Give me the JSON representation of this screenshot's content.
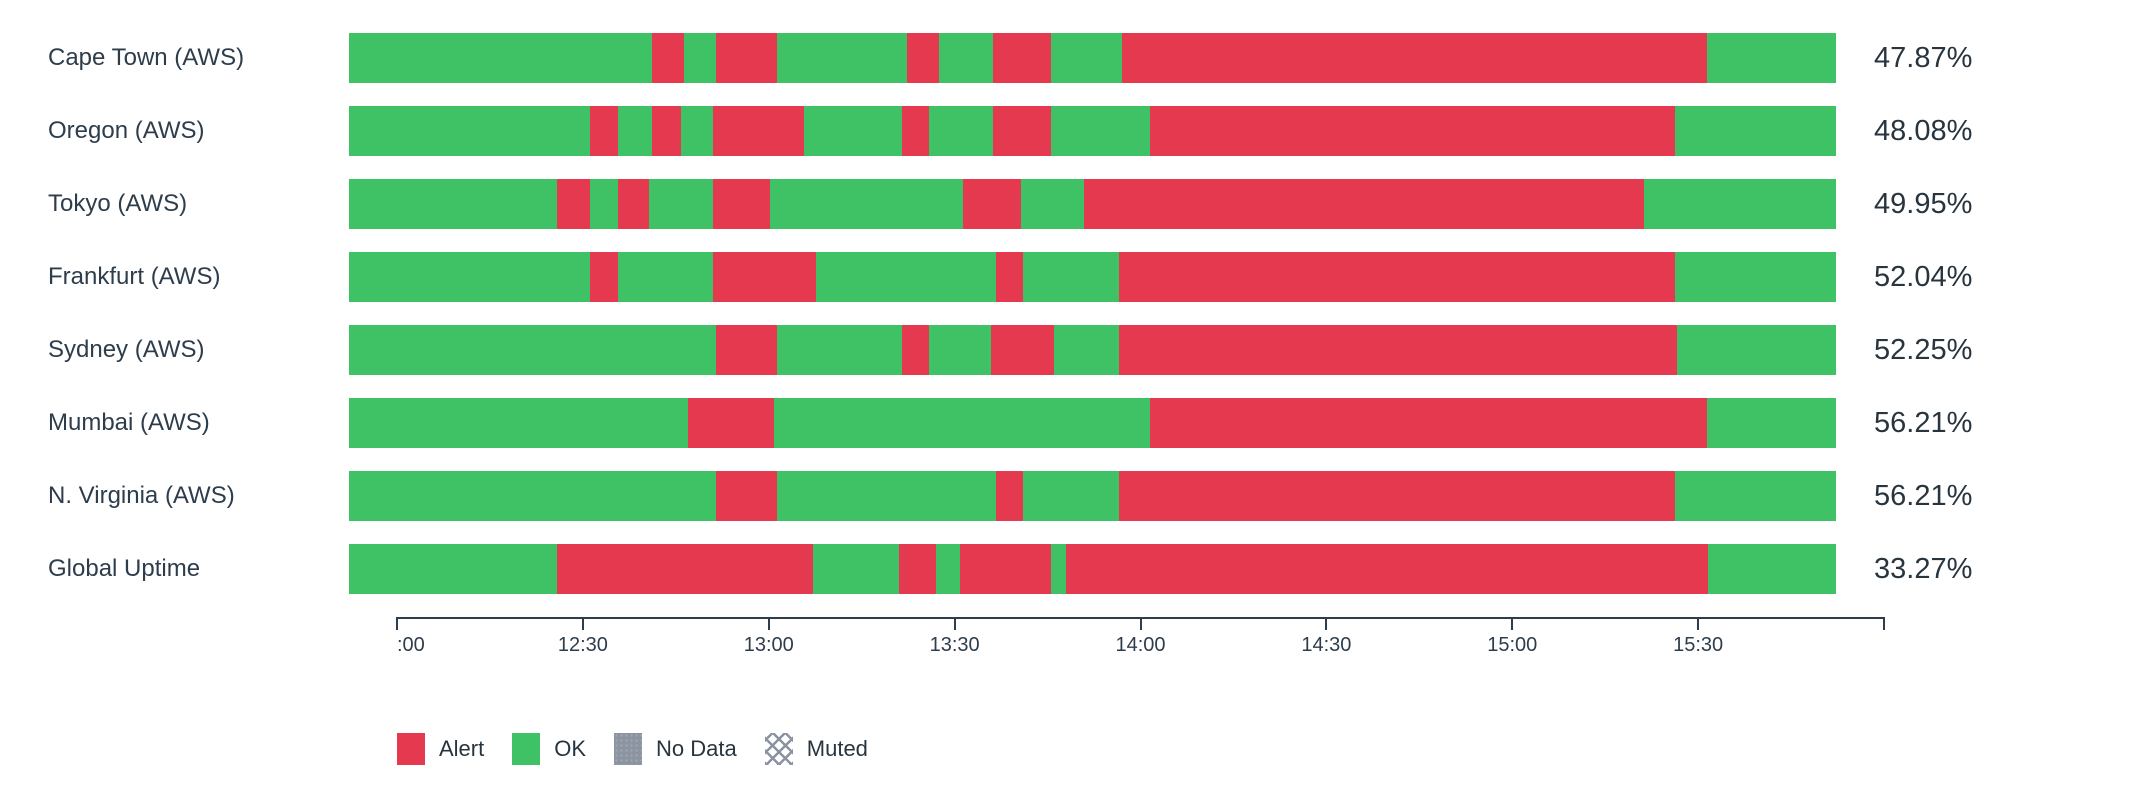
{
  "colors": {
    "alert": "#e5394f",
    "ok": "#3fc266",
    "no_data": "#8c94a1",
    "muted_pattern": "#8a93a2",
    "text": "#2e3d4c",
    "axis": "#2e3d4c",
    "background": "#ffffff"
  },
  "chart_data": {
    "type": "bar",
    "subtype": "horizontal-status-timeline (uptime/SLO widget)",
    "title": "",
    "xlabel": "",
    "ylabel": "",
    "x_axis": {
      "start": "12:00",
      "end": "16:00",
      "tick_interval_minutes": 30,
      "ticks": [
        {
          "pct": 0.0,
          "label": ":00"
        },
        {
          "pct": 12.5,
          "label": "12:30"
        },
        {
          "pct": 25.0,
          "label": "13:00"
        },
        {
          "pct": 37.5,
          "label": "13:30"
        },
        {
          "pct": 50.0,
          "label": "14:00"
        },
        {
          "pct": 62.5,
          "label": "14:30"
        },
        {
          "pct": 75.0,
          "label": "15:00"
        },
        {
          "pct": 87.5,
          "label": "15:30"
        },
        {
          "pct": 100.0,
          "label": ""
        }
      ]
    },
    "rows": [
      {
        "label": "Cape Town (AWS)",
        "uptime": "47.87%",
        "segments": [
          {
            "status": "ok",
            "start": "12:00",
            "end": "12:49",
            "start_pct": 0,
            "end_pct": 20.4
          },
          {
            "status": "alert",
            "start": "12:49",
            "end": "12:54",
            "start_pct": 20.4,
            "end_pct": 22.5
          },
          {
            "status": "ok",
            "start": "12:54",
            "end": "12:59",
            "start_pct": 22.5,
            "end_pct": 24.7
          },
          {
            "status": "alert",
            "start": "12:59",
            "end": "13:09",
            "start_pct": 24.7,
            "end_pct": 28.8
          },
          {
            "status": "ok",
            "start": "13:09",
            "end": "13:30",
            "start_pct": 28.8,
            "end_pct": 37.5
          },
          {
            "status": "alert",
            "start": "13:30",
            "end": "13:35",
            "start_pct": 37.5,
            "end_pct": 39.7
          },
          {
            "status": "ok",
            "start": "13:35",
            "end": "13:44",
            "start_pct": 39.7,
            "end_pct": 43.3
          },
          {
            "status": "alert",
            "start": "13:44",
            "end": "13:53",
            "start_pct": 43.3,
            "end_pct": 47.2
          },
          {
            "status": "ok",
            "start": "13:53",
            "end": "14:05",
            "start_pct": 47.2,
            "end_pct": 52.0
          },
          {
            "status": "alert",
            "start": "14:05",
            "end": "15:39",
            "start_pct": 52.0,
            "end_pct": 91.3
          },
          {
            "status": "ok",
            "start": "15:39",
            "end": "16:00",
            "start_pct": 91.3,
            "end_pct": 100
          }
        ]
      },
      {
        "label": "Oregon (AWS)",
        "uptime": "48.08%",
        "segments": [
          {
            "status": "ok",
            "start": "12:00",
            "end": "12:39",
            "start_pct": 0,
            "end_pct": 16.2
          },
          {
            "status": "alert",
            "start": "12:39",
            "end": "12:43",
            "start_pct": 16.2,
            "end_pct": 18.1
          },
          {
            "status": "ok",
            "start": "12:43",
            "end": "12:49",
            "start_pct": 18.1,
            "end_pct": 20.4
          },
          {
            "status": "alert",
            "start": "12:49",
            "end": "12:54",
            "start_pct": 20.4,
            "end_pct": 22.3
          },
          {
            "status": "ok",
            "start": "12:54",
            "end": "12:59",
            "start_pct": 22.3,
            "end_pct": 24.5
          },
          {
            "status": "alert",
            "start": "12:59",
            "end": "13:13",
            "start_pct": 24.5,
            "end_pct": 30.6
          },
          {
            "status": "ok",
            "start": "13:13",
            "end": "13:29",
            "start_pct": 30.6,
            "end_pct": 37.2
          },
          {
            "status": "alert",
            "start": "13:29",
            "end": "13:34",
            "start_pct": 37.2,
            "end_pct": 39.0
          },
          {
            "status": "ok",
            "start": "13:34",
            "end": "13:44",
            "start_pct": 39.0,
            "end_pct": 43.3
          },
          {
            "status": "alert",
            "start": "13:44",
            "end": "13:53",
            "start_pct": 43.3,
            "end_pct": 47.2
          },
          {
            "status": "ok",
            "start": "13:53",
            "end": "14:09",
            "start_pct": 47.2,
            "end_pct": 53.9
          },
          {
            "status": "alert",
            "start": "14:09",
            "end": "15:34",
            "start_pct": 53.9,
            "end_pct": 89.2
          },
          {
            "status": "ok",
            "start": "15:34",
            "end": "16:00",
            "start_pct": 89.2,
            "end_pct": 100
          }
        ]
      },
      {
        "label": "Tokyo (AWS)",
        "uptime": "49.95%",
        "segments": [
          {
            "status": "ok",
            "start": "12:00",
            "end": "12:34",
            "start_pct": 0,
            "end_pct": 14.0
          },
          {
            "status": "alert",
            "start": "12:34",
            "end": "12:39",
            "start_pct": 14.0,
            "end_pct": 16.2
          },
          {
            "status": "ok",
            "start": "12:39",
            "end": "12:43",
            "start_pct": 16.2,
            "end_pct": 18.1
          },
          {
            "status": "alert",
            "start": "12:43",
            "end": "12:48",
            "start_pct": 18.1,
            "end_pct": 20.2
          },
          {
            "status": "ok",
            "start": "12:48",
            "end": "12:59",
            "start_pct": 20.2,
            "end_pct": 24.5
          },
          {
            "status": "alert",
            "start": "12:59",
            "end": "13:08",
            "start_pct": 24.5,
            "end_pct": 28.3
          },
          {
            "status": "ok",
            "start": "13:08",
            "end": "13:39",
            "start_pct": 28.3,
            "end_pct": 41.3
          },
          {
            "status": "alert",
            "start": "13:39",
            "end": "13:48",
            "start_pct": 41.3,
            "end_pct": 45.2
          },
          {
            "status": "ok",
            "start": "13:48",
            "end": "13:59",
            "start_pct": 45.2,
            "end_pct": 49.4
          },
          {
            "status": "alert",
            "start": "13:59",
            "end": "15:29",
            "start_pct": 49.4,
            "end_pct": 87.1
          },
          {
            "status": "ok",
            "start": "15:29",
            "end": "16:00",
            "start_pct": 87.1,
            "end_pct": 100
          }
        ]
      },
      {
        "label": "Frankfurt (AWS)",
        "uptime": "52.04%",
        "segments": [
          {
            "status": "ok",
            "start": "12:00",
            "end": "12:39",
            "start_pct": 0,
            "end_pct": 16.2
          },
          {
            "status": "alert",
            "start": "12:39",
            "end": "12:43",
            "start_pct": 16.2,
            "end_pct": 18.1
          },
          {
            "status": "ok",
            "start": "12:43",
            "end": "12:59",
            "start_pct": 18.1,
            "end_pct": 24.5
          },
          {
            "status": "alert",
            "start": "12:59",
            "end": "13:15",
            "start_pct": 24.5,
            "end_pct": 31.4
          },
          {
            "status": "ok",
            "start": "13:15",
            "end": "13:44",
            "start_pct": 31.4,
            "end_pct": 43.5
          },
          {
            "status": "alert",
            "start": "13:44",
            "end": "13:49",
            "start_pct": 43.5,
            "end_pct": 45.3
          },
          {
            "status": "ok",
            "start": "13:49",
            "end": "14:04",
            "start_pct": 45.3,
            "end_pct": 51.8
          },
          {
            "status": "alert",
            "start": "14:04",
            "end": "15:34",
            "start_pct": 51.8,
            "end_pct": 89.2
          },
          {
            "status": "ok",
            "start": "15:34",
            "end": "16:00",
            "start_pct": 89.2,
            "end_pct": 100
          }
        ]
      },
      {
        "label": "Sydney (AWS)",
        "uptime": "52.25%",
        "segments": [
          {
            "status": "ok",
            "start": "12:00",
            "end": "12:59",
            "start_pct": 0,
            "end_pct": 24.7
          },
          {
            "status": "alert",
            "start": "12:59",
            "end": "13:09",
            "start_pct": 24.7,
            "end_pct": 28.8
          },
          {
            "status": "ok",
            "start": "13:09",
            "end": "13:29",
            "start_pct": 28.8,
            "end_pct": 37.2
          },
          {
            "status": "alert",
            "start": "13:29",
            "end": "13:34",
            "start_pct": 37.2,
            "end_pct": 39.0
          },
          {
            "status": "ok",
            "start": "13:34",
            "end": "13:44",
            "start_pct": 39.0,
            "end_pct": 43.2
          },
          {
            "status": "alert",
            "start": "13:44",
            "end": "13:54",
            "start_pct": 43.2,
            "end_pct": 47.4
          },
          {
            "status": "ok",
            "start": "13:54",
            "end": "14:04",
            "start_pct": 47.4,
            "end_pct": 51.8
          },
          {
            "status": "alert",
            "start": "14:04",
            "end": "15:34",
            "start_pct": 51.8,
            "end_pct": 89.3
          },
          {
            "status": "ok",
            "start": "15:34",
            "end": "16:00",
            "start_pct": 89.3,
            "end_pct": 100
          }
        ]
      },
      {
        "label": "Mumbai (AWS)",
        "uptime": "56.21%",
        "segments": [
          {
            "status": "ok",
            "start": "12:00",
            "end": "12:55",
            "start_pct": 0,
            "end_pct": 22.8
          },
          {
            "status": "alert",
            "start": "12:55",
            "end": "13:09",
            "start_pct": 22.8,
            "end_pct": 28.6
          },
          {
            "status": "ok",
            "start": "13:09",
            "end": "14:09",
            "start_pct": 28.6,
            "end_pct": 53.9
          },
          {
            "status": "alert",
            "start": "14:09",
            "end": "15:39",
            "start_pct": 53.9,
            "end_pct": 91.3
          },
          {
            "status": "ok",
            "start": "15:39",
            "end": "16:00",
            "start_pct": 91.3,
            "end_pct": 100
          }
        ]
      },
      {
        "label": "N. Virginia (AWS)",
        "uptime": "56.21%",
        "segments": [
          {
            "status": "ok",
            "start": "12:00",
            "end": "12:59",
            "start_pct": 0,
            "end_pct": 24.7
          },
          {
            "status": "alert",
            "start": "12:59",
            "end": "13:09",
            "start_pct": 24.7,
            "end_pct": 28.8
          },
          {
            "status": "ok",
            "start": "13:09",
            "end": "13:44",
            "start_pct": 28.8,
            "end_pct": 43.5
          },
          {
            "status": "alert",
            "start": "13:44",
            "end": "13:49",
            "start_pct": 43.5,
            "end_pct": 45.3
          },
          {
            "status": "ok",
            "start": "13:49",
            "end": "14:04",
            "start_pct": 45.3,
            "end_pct": 51.8
          },
          {
            "status": "alert",
            "start": "14:04",
            "end": "15:34",
            "start_pct": 51.8,
            "end_pct": 89.2
          },
          {
            "status": "ok",
            "start": "15:34",
            "end": "16:00",
            "start_pct": 89.2,
            "end_pct": 100
          }
        ]
      },
      {
        "label": "Global Uptime",
        "uptime": "33.27%",
        "segments": [
          {
            "status": "ok",
            "start": "12:00",
            "end": "12:34",
            "start_pct": 0,
            "end_pct": 14.0
          },
          {
            "status": "alert",
            "start": "12:34",
            "end": "13:15",
            "start_pct": 14.0,
            "end_pct": 31.2
          },
          {
            "status": "ok",
            "start": "13:15",
            "end": "13:29",
            "start_pct": 31.2,
            "end_pct": 37.0
          },
          {
            "status": "alert",
            "start": "13:29",
            "end": "13:35",
            "start_pct": 37.0,
            "end_pct": 39.5
          },
          {
            "status": "ok",
            "start": "13:35",
            "end": "13:39",
            "start_pct": 39.5,
            "end_pct": 41.1
          },
          {
            "status": "alert",
            "start": "13:39",
            "end": "13:53",
            "start_pct": 41.1,
            "end_pct": 47.2
          },
          {
            "status": "ok",
            "start": "13:53",
            "end": "13:56",
            "start_pct": 47.2,
            "end_pct": 48.2
          },
          {
            "status": "alert",
            "start": "13:56",
            "end": "15:39",
            "start_pct": 48.2,
            "end_pct": 91.4
          },
          {
            "status": "ok",
            "start": "15:39",
            "end": "16:00",
            "start_pct": 91.4,
            "end_pct": 100
          }
        ]
      }
    ]
  },
  "legend": {
    "items": [
      {
        "id": "alert",
        "label": "Alert"
      },
      {
        "id": "ok",
        "label": "OK"
      },
      {
        "id": "no_data",
        "label": "No Data"
      },
      {
        "id": "muted",
        "label": "Muted"
      }
    ]
  }
}
